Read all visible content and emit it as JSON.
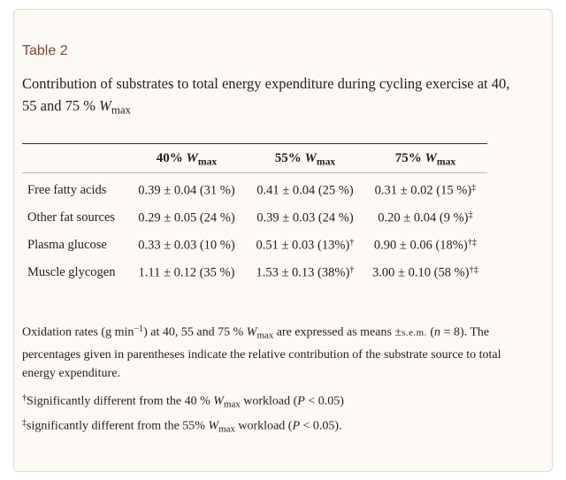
{
  "table_label": "Table 2",
  "caption": {
    "text": "Contribution of substrates to total energy expenditure during cycling exercise at 40, 55 and 75 %",
    "w": "W",
    "sub": "max"
  },
  "table": {
    "headers": [
      {
        "text": "40%",
        "w": "W",
        "sub": "max"
      },
      {
        "text": "55%",
        "w": "W",
        "sub": "max"
      },
      {
        "text": "75%",
        "w": "W",
        "sub": "max"
      }
    ],
    "rows": [
      {
        "label": "Free fatty acids",
        "cells": [
          {
            "value": "0.39 ± 0.04 (31 %)",
            "mark": ""
          },
          {
            "value": "0.41 ± 0.04 (25 %)",
            "mark": ""
          },
          {
            "value": "0.31 ± 0.02 (15 %)",
            "mark": "‡"
          }
        ]
      },
      {
        "label": "Other fat sources",
        "cells": [
          {
            "value": "0.29 ± 0.05 (24 %)",
            "mark": ""
          },
          {
            "value": "0.39 ± 0.03 (24 %)",
            "mark": ""
          },
          {
            "value": "0.20 ± 0.04 (9 %)",
            "mark": "‡"
          }
        ]
      },
      {
        "label": "Plasma glucose",
        "cells": [
          {
            "value": "0.33 ± 0.03 (10 %)",
            "mark": ""
          },
          {
            "value": "0.51 ± 0.03 (13%)",
            "mark": "†"
          },
          {
            "value": "0.90 ± 0.06 (18%)",
            "mark": "†‡"
          }
        ]
      },
      {
        "label": "Muscle glycogen",
        "cells": [
          {
            "value": "1.11 ± 0.12 (35 %)",
            "mark": ""
          },
          {
            "value": "1.53 ± 0.13 (38%)",
            "mark": "†"
          },
          {
            "value": "3.00 ± 0.10 (58 %)",
            "mark": "†‡"
          }
        ]
      }
    ]
  },
  "notes": {
    "n1_a": "Oxidation rates (g min",
    "n1_sup": "−1",
    "n1_b": ") at 40, 55 and 75 %",
    "n1_w": "W",
    "n1_sub": "max",
    "n1_c": "are expressed as means ±",
    "n1_sem": "s.e.m.",
    "n1_d": "(",
    "n1_n": "n",
    "n1_e": "= 8). The percentages given in parentheses indicate the relative contribution of the substrate source to total energy expenditure.",
    "n2_mark": "†",
    "n2_a": "Significantly different from the 40 %",
    "n2_w": "W",
    "n2_sub": "max",
    "n2_b": "workload (",
    "n2_p": "P",
    "n2_c": "< 0.05)",
    "n3_mark": "‡",
    "n3_a": "significantly different from the 55%",
    "n3_w": "W",
    "n3_sub": "max",
    "n3_b": "workload (",
    "n3_p": "P",
    "n3_c": "< 0.05)."
  },
  "colors": {
    "card_bg": "#fdf9f5",
    "card_border": "#e9d6cd",
    "label": "#7a4a35"
  }
}
